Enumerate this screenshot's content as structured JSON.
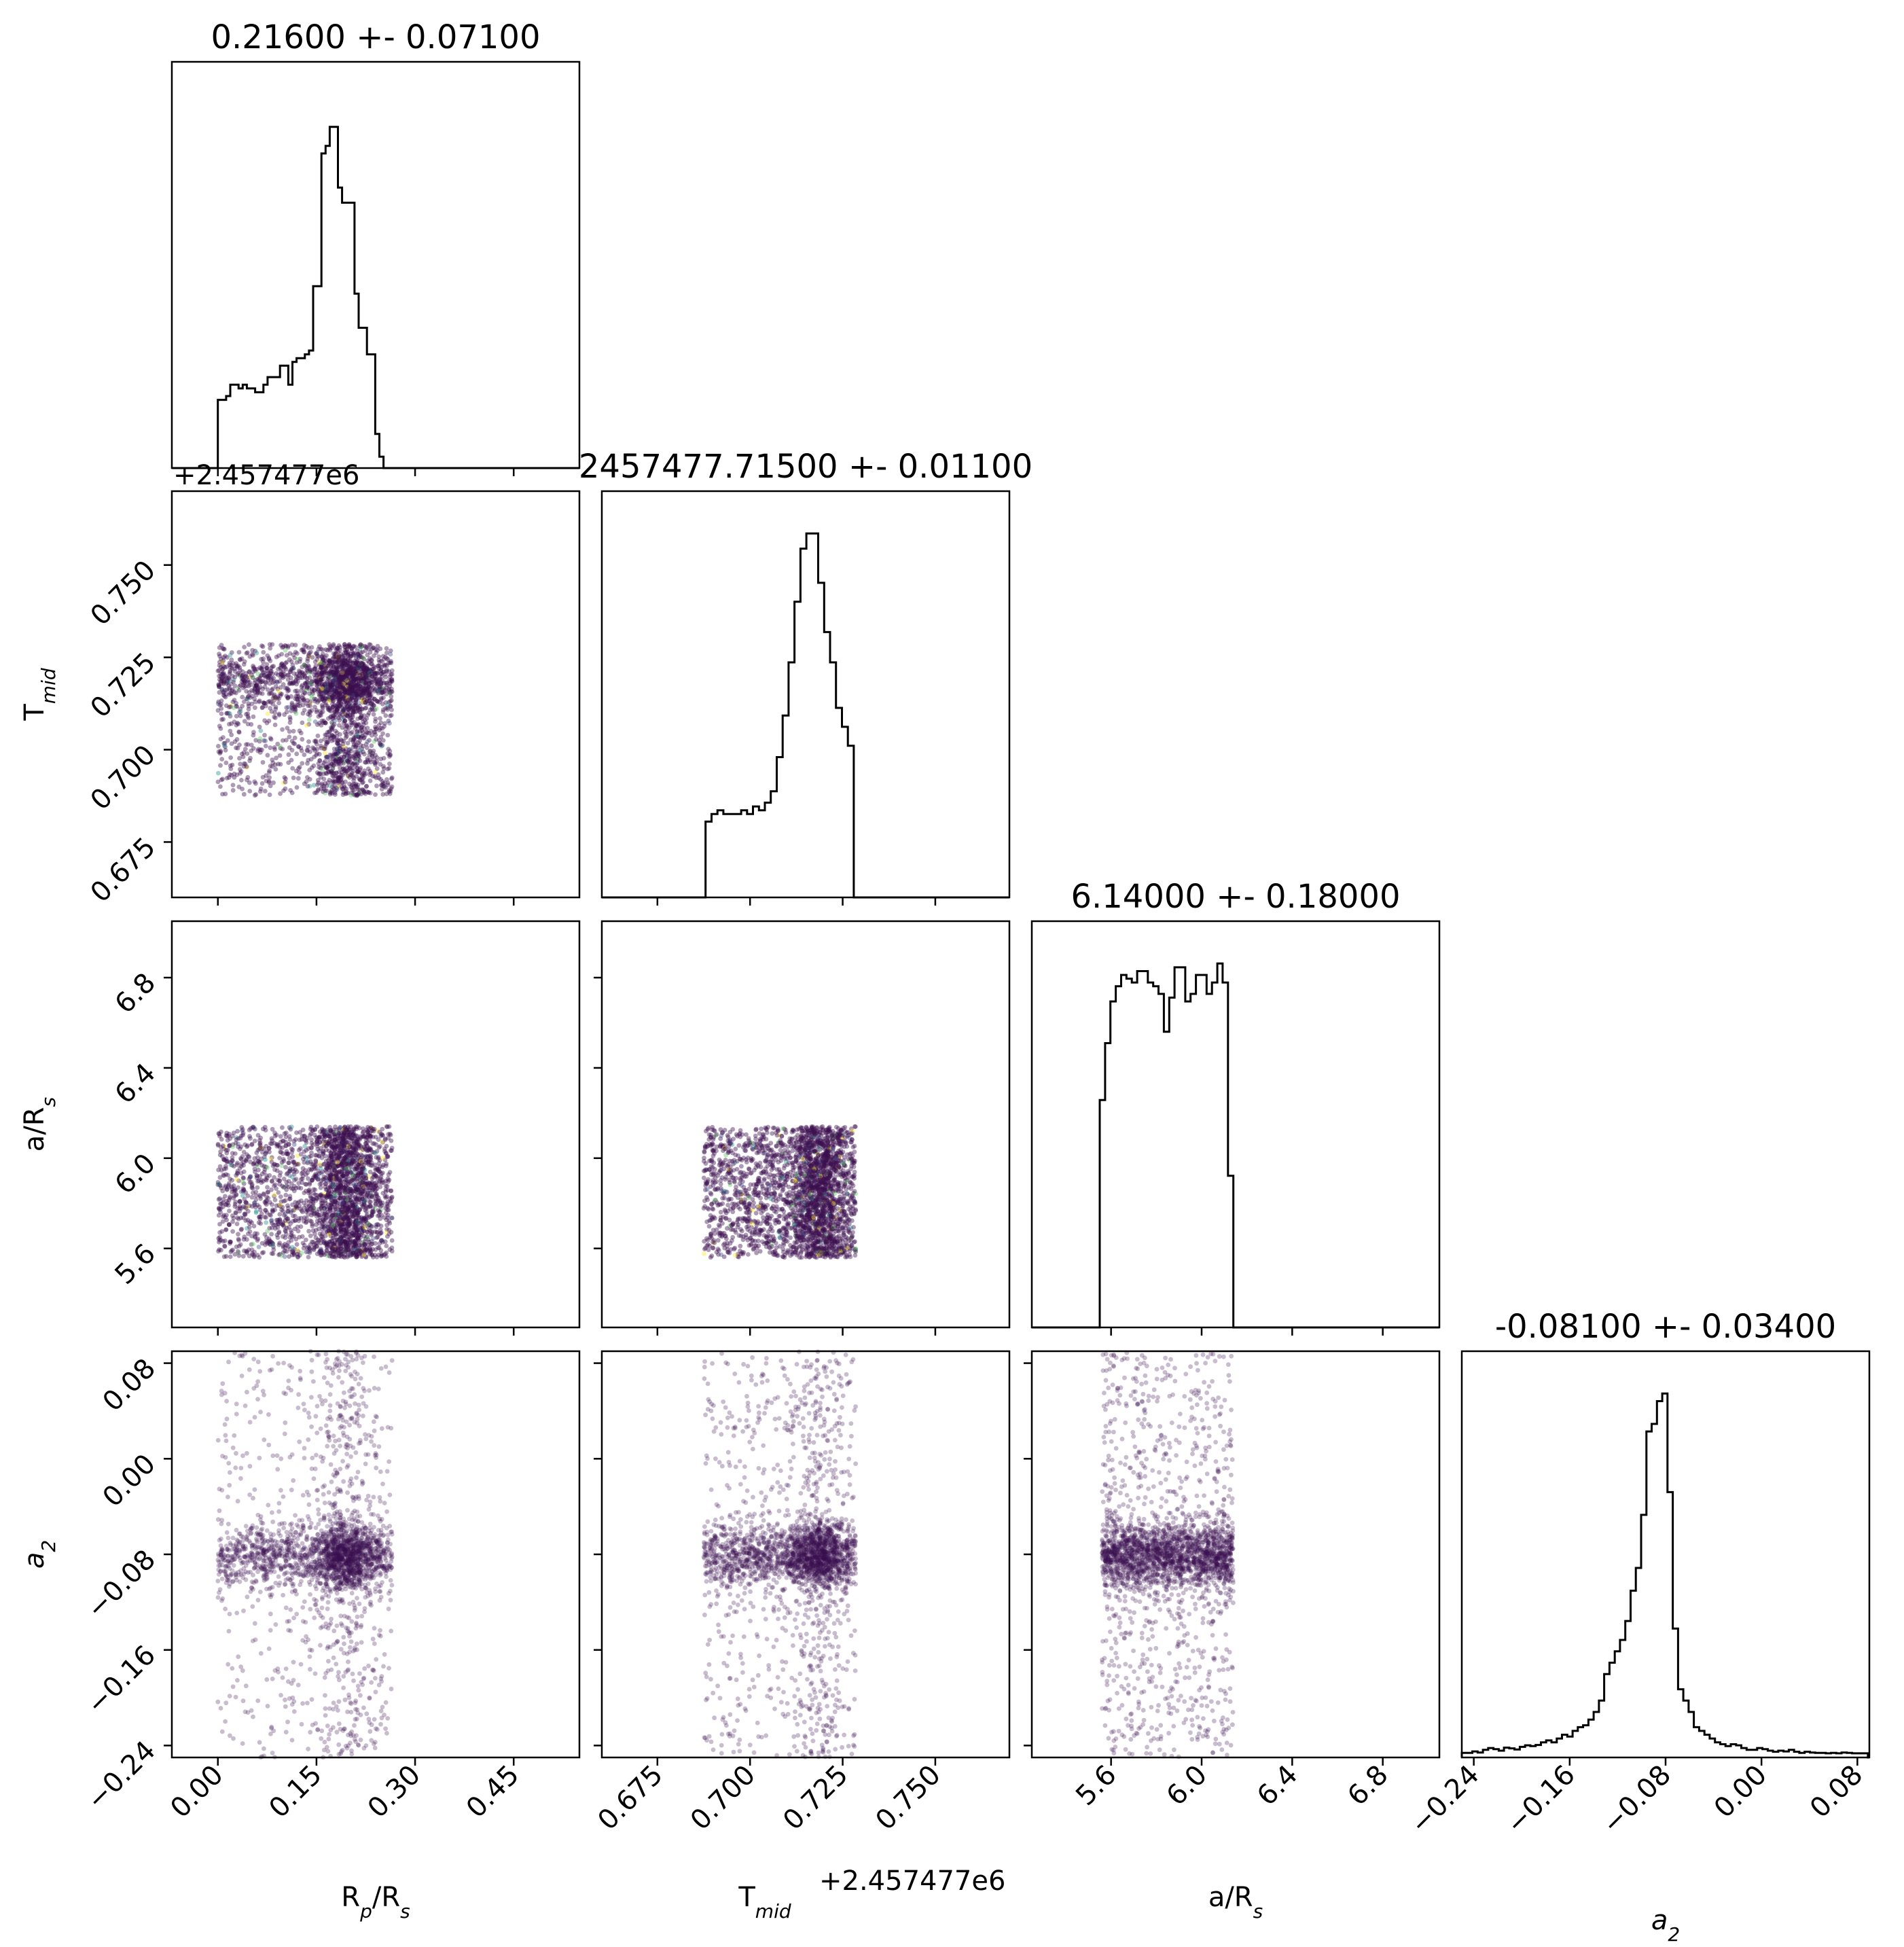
{
  "chart_data": {
    "type": "scatter",
    "subtype": "corner-plot",
    "grid": false,
    "parameters": [
      {
        "id": "rp",
        "label": "R<sub>p</sub>/R<sub>s</sub>",
        "range": [
          -0.07,
          0.55
        ],
        "ticks": [
          0.0,
          0.15,
          0.3,
          0.45
        ],
        "tick_labels": [
          "0.00",
          "0.15",
          "0.30",
          "0.45"
        ]
      },
      {
        "id": "tmid",
        "label": "T<sub>mid</sub>",
        "offset": "+2.457477e6",
        "range": [
          0.66,
          0.77
        ],
        "ticks": [
          0.675,
          0.7,
          0.725,
          0.75
        ],
        "tick_labels": [
          "0.675",
          "0.700",
          "0.725",
          "0.750"
        ]
      },
      {
        "id": "ars",
        "label": "a/R<sub>s</sub>",
        "range": [
          5.25,
          7.05
        ],
        "ticks": [
          5.6,
          6.0,
          6.4,
          6.8
        ],
        "tick_labels": [
          "5.6",
          "6.0",
          "6.4",
          "6.8"
        ]
      },
      {
        "id": "a2",
        "label": "a<sub>2</sub>",
        "label_italic": true,
        "range": [
          -0.25,
          0.09
        ],
        "ticks": [
          -0.24,
          -0.16,
          -0.08,
          0.0,
          0.08
        ],
        "tick_labels": [
          "−0.24",
          "−0.16",
          "−0.08",
          "0.00",
          "0.08"
        ]
      }
    ],
    "titles": [
      "0.21600 +- 0.07100",
      "2457477.71500 +- 0.01100",
      "6.14000 +- 0.18000",
      "-0.08100 +- 0.03400"
    ],
    "histograms": [
      {
        "param": "rp",
        "bin_edges": [
          0.0,
          0.0063,
          0.0126,
          0.0189,
          0.0252,
          0.0315,
          0.0378,
          0.0441,
          0.0504,
          0.0567,
          0.063,
          0.0693,
          0.0756,
          0.0819,
          0.0882,
          0.0945,
          0.1008,
          0.1071,
          0.1134,
          0.1197,
          0.126,
          0.1323,
          0.1386,
          0.1449,
          0.1512,
          0.1575,
          0.1638,
          0.1701,
          0.1764,
          0.1827,
          0.189,
          0.1953,
          0.2016,
          0.2079,
          0.2142,
          0.2205,
          0.2268,
          0.2331,
          0.2394,
          0.2457,
          0.252,
          0.2583,
          0.2646,
          0.2709,
          0.2772
        ],
        "counts": [
          0.18,
          0.18,
          0.19,
          0.22,
          0.22,
          0.21,
          0.22,
          0.21,
          0.21,
          0.2,
          0.2,
          0.22,
          0.24,
          0.24,
          0.24,
          0.27,
          0.27,
          0.22,
          0.28,
          0.29,
          0.29,
          0.3,
          0.31,
          0.48,
          0.48,
          0.83,
          0.85,
          0.9,
          0.9,
          0.74,
          0.7,
          0.7,
          0.7,
          0.46,
          0.37,
          0.37,
          0.3,
          0.3,
          0.09,
          0.03,
          0.0,
          0.0,
          0.0,
          0.0
        ]
      },
      {
        "param": "tmid",
        "bin_edges": [
          0.688,
          0.6896,
          0.6912,
          0.6928,
          0.6944,
          0.696,
          0.6976,
          0.6992,
          0.7008,
          0.7024,
          0.704,
          0.7056,
          0.7072,
          0.7088,
          0.7104,
          0.712,
          0.7136,
          0.7152,
          0.7168,
          0.7184,
          0.72,
          0.7216,
          0.7232,
          0.7248,
          0.7264,
          0.728
        ],
        "counts": [
          0.2,
          0.22,
          0.23,
          0.22,
          0.22,
          0.22,
          0.23,
          0.22,
          0.24,
          0.23,
          0.25,
          0.28,
          0.37,
          0.48,
          0.62,
          0.78,
          0.92,
          0.96,
          0.96,
          0.83,
          0.7,
          0.62,
          0.5,
          0.45,
          0.4
        ]
      },
      {
        "param": "ars",
        "bin_edges": [
          5.55,
          5.5736,
          5.5972,
          5.6208,
          5.6444,
          5.668,
          5.6916,
          5.7152,
          5.7388,
          5.7624,
          5.786,
          5.8096,
          5.8332,
          5.8568,
          5.8804,
          5.904,
          5.9276,
          5.9512,
          5.9748,
          5.9984,
          6.022,
          6.0456,
          6.0692,
          6.0928,
          6.1164,
          6.14,
          6.1636
        ],
        "counts": [
          0.6,
          0.75,
          0.86,
          0.9,
          0.93,
          0.92,
          0.91,
          0.94,
          0.94,
          0.91,
          0.9,
          0.88,
          0.78,
          0.87,
          0.95,
          0.95,
          0.86,
          0.88,
          0.93,
          0.93,
          0.88,
          0.91,
          0.96,
          0.91,
          0.4,
          0.0
        ]
      },
      {
        "param": "a2",
        "bin_edges": [
          -0.25,
          -0.2456,
          -0.2412,
          -0.2368,
          -0.2324,
          -0.228,
          -0.2236,
          -0.2192,
          -0.2148,
          -0.2104,
          -0.206,
          -0.2016,
          -0.1972,
          -0.1928,
          -0.1884,
          -0.184,
          -0.1796,
          -0.1752,
          -0.1708,
          -0.1664,
          -0.162,
          -0.1576,
          -0.1532,
          -0.1488,
          -0.1444,
          -0.14,
          -0.1356,
          -0.1312,
          -0.1268,
          -0.1224,
          -0.118,
          -0.1136,
          -0.1092,
          -0.1048,
          -0.1004,
          -0.096,
          -0.0916,
          -0.0872,
          -0.0828,
          -0.0784,
          -0.074,
          -0.0696,
          -0.0652,
          -0.0608,
          -0.0564,
          -0.052,
          -0.0476,
          -0.0432,
          -0.0388,
          -0.0344,
          -0.03,
          -0.0256,
          -0.0212,
          -0.0168,
          -0.0124,
          -0.008,
          -0.0036,
          0.0008,
          0.0052,
          0.0096,
          0.014,
          0.0184,
          0.0228,
          0.0272,
          0.0316,
          0.036,
          0.0404,
          0.0448,
          0.0492,
          0.0536,
          0.058,
          0.0624,
          0.0668,
          0.0712,
          0.0756,
          0.08,
          0.0844,
          0.0888
        ],
        "counts": [
          0.012,
          0.012,
          0.016,
          0.013,
          0.02,
          0.025,
          0.022,
          0.018,
          0.026,
          0.024,
          0.021,
          0.028,
          0.032,
          0.03,
          0.033,
          0.04,
          0.045,
          0.04,
          0.05,
          0.06,
          0.055,
          0.07,
          0.08,
          0.085,
          0.1,
          0.12,
          0.15,
          0.22,
          0.25,
          0.28,
          0.31,
          0.36,
          0.44,
          0.5,
          0.64,
          0.86,
          0.88,
          0.94,
          0.96,
          0.7,
          0.34,
          0.18,
          0.15,
          0.12,
          0.08,
          0.07,
          0.06,
          0.05,
          0.04,
          0.035,
          0.03,
          0.035,
          0.032,
          0.025,
          0.02,
          0.02,
          0.025,
          0.022,
          0.018,
          0.015,
          0.018,
          0.016,
          0.02,
          0.015,
          0.012,
          0.015,
          0.013,
          0.012,
          0.012,
          0.011,
          0.012,
          0.011,
          0.013,
          0.012,
          0.011,
          0.011,
          0.011
        ]
      }
    ],
    "scatter_density": {
      "rp": {
        "uniform": [
          0.0,
          0.265
        ],
        "peak": 0.195,
        "peak_sd": 0.025,
        "peak_weight": 0.45
      },
      "tmid": {
        "uniform": [
          0.6875,
          0.7285
        ],
        "peak": 0.7185,
        "peak_sd": 0.004,
        "peak_weight": 0.4
      },
      "ars": {
        "uniform": [
          5.56,
          6.14
        ]
      },
      "a2": {
        "range": [
          -0.25,
          0.09
        ],
        "peak": -0.081,
        "peak_sd": 0.014,
        "peak_weight": 0.68
      }
    },
    "colors": {
      "points": "#3b0f4f",
      "accent_points": [
        "#fde725",
        "#21918c",
        "#5ec962",
        "#3b528b"
      ],
      "hist_line": "#000000",
      "frame": "#000000"
    }
  }
}
